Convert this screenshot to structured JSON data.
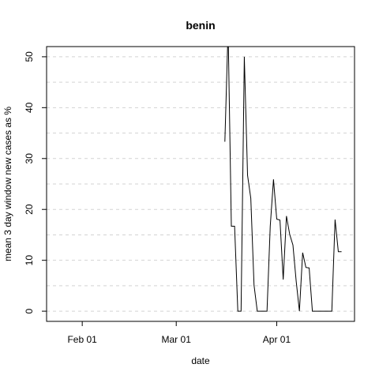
{
  "chart_data": {
    "type": "line",
    "title": "benin",
    "xlabel": "date",
    "ylabel": "mean  3  day window new cases as %",
    "x_axis": {
      "type": "date",
      "range": [
        "2020-01-21",
        "2020-04-25"
      ],
      "ticks": [
        {
          "date": "2020-02-01",
          "label": "Feb 01"
        },
        {
          "date": "2020-03-01",
          "label": "Mar 01"
        },
        {
          "date": "2020-04-01",
          "label": "Apr 01"
        }
      ]
    },
    "y_axis": {
      "range": [
        -2,
        52
      ],
      "ticks": [
        0,
        10,
        20,
        30,
        40,
        50
      ],
      "gridlines_major": [
        0,
        10,
        20,
        30,
        40,
        50
      ],
      "gridlines_minor": [
        5,
        15,
        25,
        35,
        45
      ]
    },
    "grid": true,
    "series": [
      {
        "color": "#000000",
        "points": [
          {
            "x": "2020-03-16",
            "y": 33.3
          },
          {
            "x": "2020-03-17",
            "y": 55.6
          },
          {
            "x": "2020-03-18",
            "y": 16.7
          },
          {
            "x": "2020-03-19",
            "y": 16.7
          },
          {
            "x": "2020-03-20",
            "y": 0
          },
          {
            "x": "2020-03-21",
            "y": 0
          },
          {
            "x": "2020-03-22",
            "y": 50
          },
          {
            "x": "2020-03-23",
            "y": 26.7
          },
          {
            "x": "2020-03-24",
            "y": 22.2
          },
          {
            "x": "2020-03-25",
            "y": 5.1
          },
          {
            "x": "2020-03-26",
            "y": 0
          },
          {
            "x": "2020-03-27",
            "y": 0
          },
          {
            "x": "2020-03-28",
            "y": 0
          },
          {
            "x": "2020-03-29",
            "y": 0
          },
          {
            "x": "2020-03-30",
            "y": 16.7
          },
          {
            "x": "2020-03-31",
            "y": 25.9
          },
          {
            "x": "2020-04-01",
            "y": 18.1
          },
          {
            "x": "2020-04-02",
            "y": 17.9
          },
          {
            "x": "2020-04-03",
            "y": 6.2
          },
          {
            "x": "2020-04-04",
            "y": 18.7
          },
          {
            "x": "2020-04-05",
            "y": 15.1
          },
          {
            "x": "2020-04-06",
            "y": 13
          },
          {
            "x": "2020-04-07",
            "y": 5.9
          },
          {
            "x": "2020-04-08",
            "y": 0
          },
          {
            "x": "2020-04-09",
            "y": 11.5
          },
          {
            "x": "2020-04-10",
            "y": 8.6
          },
          {
            "x": "2020-04-11",
            "y": 8.5
          },
          {
            "x": "2020-04-12",
            "y": 0
          },
          {
            "x": "2020-04-13",
            "y": 0
          },
          {
            "x": "2020-04-14",
            "y": 0
          },
          {
            "x": "2020-04-15",
            "y": 0
          },
          {
            "x": "2020-04-16",
            "y": 0
          },
          {
            "x": "2020-04-17",
            "y": 0
          },
          {
            "x": "2020-04-18",
            "y": 0
          },
          {
            "x": "2020-04-19",
            "y": 18
          },
          {
            "x": "2020-04-20",
            "y": 11.7
          },
          {
            "x": "2020-04-21",
            "y": 11.7
          }
        ]
      }
    ]
  }
}
